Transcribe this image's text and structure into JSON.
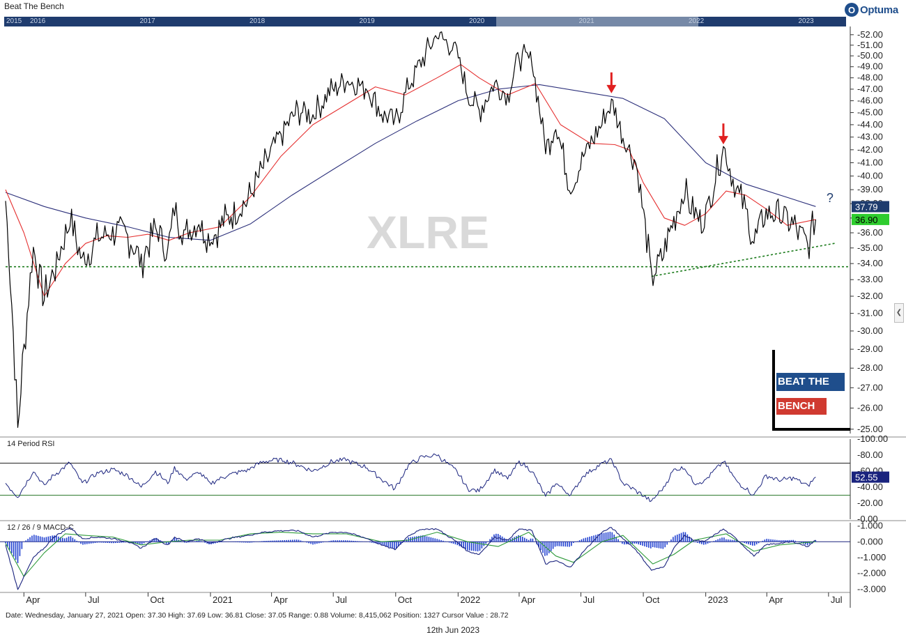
{
  "app_title": "Beat  The Bench",
  "brand": {
    "name": "Optuma",
    "mark": "O"
  },
  "navigator_years": [
    "2015",
    "2016",
    "2017",
    "2018",
    "2019",
    "2020",
    "2021",
    "2022",
    "2023"
  ],
  "watermark": "XLRE",
  "question_mark": "?",
  "status_line": "Date: Wednesday, January 27, 2021 Open: 37.30 High: 37.69 Low: 36.81 Close: 37.05 Range: 0.88 Volume: 8,415,062 Position: 1327 Cursor Value : 28.72",
  "footer_date": "12th Jun 2023",
  "side_toggle_icon": "chevron-left-icon",
  "btb_logo": {
    "line1": "BEAT THE",
    "line2": "BENCH"
  },
  "colors": {
    "price": "#000000",
    "sma50": "#e53030",
    "sma200": "#2b2f7a",
    "support": "#1a7a1a",
    "rsi": "#1a237e",
    "macd_line": "#1a237e",
    "macd_signal": "#2e9a3a",
    "macd_hist": "#1f3fd0",
    "badge_sma200": "#1f3c6e",
    "badge_price": "#2ecc2e",
    "arrow": "#e02020"
  },
  "chart_data": [
    {
      "type": "line",
      "title": "",
      "yticks": [
        "52.00",
        "51.00",
        "50.00",
        "49.00",
        "48.00",
        "47.00",
        "46.00",
        "45.00",
        "44.00",
        "43.00",
        "42.00",
        "41.00",
        "40.00",
        "39.00",
        "38.00",
        "37.00",
        "36.00",
        "35.00",
        "34.00",
        "33.00",
        "32.00",
        "31.00",
        "30.00",
        "29.00",
        "28.00",
        "27.00",
        "26.00",
        "25.00"
      ],
      "ylim": [
        24.8,
        52.8
      ],
      "y_scale": "log",
      "xticks": [
        "Apr",
        "Jul",
        "Oct",
        "2021",
        "Apr",
        "Jul",
        "Oct",
        "2022",
        "Apr",
        "Jul",
        "Oct",
        "2023",
        "Apr",
        "Jul"
      ],
      "xlim": [
        "2020-03-05",
        "2023-08-02"
      ],
      "price_badge": "36.90",
      "sma200_badge": "37.79",
      "support_level": 33.8,
      "trendline": {
        "from": [
          "2022-10-13",
          33.2
        ],
        "to": [
          "2023-07-10",
          35.3
        ]
      },
      "arrows": [
        {
          "date": "2022-08-15",
          "value": 46.4
        },
        {
          "date": "2023-01-27",
          "value": 42.2
        }
      ],
      "series": [
        {
          "name": "XLRE",
          "x": [
            "2020-03-05",
            "2020-03-23",
            "2020-04-15",
            "2020-05-01",
            "2020-05-15",
            "2020-06-08",
            "2020-06-26",
            "2020-07-20",
            "2020-08-10",
            "2020-09-01",
            "2020-09-21",
            "2020-10-12",
            "2020-10-30",
            "2020-11-09",
            "2020-11-25",
            "2020-12-15",
            "2020-12-31",
            "2021-01-27",
            "2021-02-25",
            "2021-03-20",
            "2021-04-15",
            "2021-05-10",
            "2021-06-01",
            "2021-06-30",
            "2021-07-20",
            "2021-08-20",
            "2021-09-10",
            "2021-09-30",
            "2021-10-20",
            "2021-11-10",
            "2021-12-01",
            "2021-12-30",
            "2022-01-15",
            "2022-02-01",
            "2022-02-24",
            "2022-03-15",
            "2022-04-01",
            "2022-04-20",
            "2022-05-10",
            "2022-05-25",
            "2022-06-16",
            "2022-07-05",
            "2022-08-01",
            "2022-08-15",
            "2022-09-01",
            "2022-09-20",
            "2022-10-13",
            "2022-10-31",
            "2022-11-15",
            "2022-12-01",
            "2022-12-15",
            "2022-12-30",
            "2023-01-27",
            "2023-02-15",
            "2023-03-01",
            "2023-03-13",
            "2023-03-31",
            "2023-04-20",
            "2023-05-10",
            "2023-05-31",
            "2023-06-12"
          ],
          "values": [
            38.2,
            25.0,
            35.0,
            31.8,
            33.5,
            36.8,
            34.2,
            35.6,
            36.2,
            35.8,
            34.2,
            36.3,
            34.8,
            37.4,
            35.9,
            36.8,
            35.5,
            37.1,
            38.2,
            40.6,
            43.3,
            45.2,
            44.8,
            47.0,
            47.8,
            47.1,
            45.0,
            44.2,
            47.2,
            49.8,
            52.0,
            50.5,
            46.5,
            45.2,
            47.5,
            46.5,
            50.0,
            49.5,
            42.0,
            44.0,
            39.0,
            41.5,
            44.0,
            45.9,
            43.0,
            41.0,
            33.2,
            34.5,
            37.0,
            38.8,
            37.2,
            36.8,
            42.2,
            39.0,
            37.5,
            35.3,
            37.5,
            37.2,
            36.5,
            35.2,
            36.9
          ]
        },
        {
          "name": "",
          "x": [
            "2020-03-05",
            "2020-04-01",
            "2020-05-01",
            "2020-06-01",
            "2020-07-01",
            "2020-08-01",
            "2020-09-01",
            "2020-10-01",
            "2020-11-01",
            "2020-12-01",
            "2021-01-15",
            "2021-03-01",
            "2021-04-15",
            "2021-06-01",
            "2021-07-15",
            "2021-09-01",
            "2021-10-15",
            "2021-12-01",
            "2022-01-05",
            "2022-02-01",
            "2022-03-15",
            "2022-04-25",
            "2022-06-01",
            "2022-07-15",
            "2022-08-20",
            "2022-09-10",
            "2022-10-01",
            "2022-11-01",
            "2022-12-01",
            "2023-01-01",
            "2023-01-31",
            "2023-03-01",
            "2023-04-01",
            "2023-05-01",
            "2023-06-12"
          ],
          "values": [
            39.0,
            36.0,
            32.0,
            34.0,
            35.3,
            35.8,
            35.7,
            35.9,
            35.5,
            36.0,
            36.4,
            38.5,
            41.5,
            44.0,
            45.5,
            47.2,
            46.5,
            48.0,
            49.2,
            48.0,
            46.5,
            47.5,
            44.0,
            42.5,
            42.4,
            42.0,
            39.5,
            37.0,
            36.5,
            37.3,
            38.9,
            38.6,
            37.6,
            36.5,
            36.9
          ]
        },
        {
          "name": "",
          "x": [
            "2020-03-05",
            "2020-05-01",
            "2020-07-01",
            "2020-09-01",
            "2020-11-01",
            "2021-01-01",
            "2021-03-01",
            "2021-05-01",
            "2021-07-01",
            "2021-09-01",
            "2021-11-01",
            "2022-01-01",
            "2022-03-01",
            "2022-05-01",
            "2022-07-01",
            "2022-09-01",
            "2022-11-01",
            "2023-01-01",
            "2023-03-01",
            "2023-06-12"
          ],
          "values": [
            38.8,
            37.8,
            37.0,
            36.4,
            35.7,
            35.5,
            36.6,
            38.6,
            40.5,
            42.5,
            44.3,
            46.0,
            47.0,
            47.4,
            46.8,
            46.2,
            44.5,
            41.0,
            39.4,
            37.8
          ]
        }
      ]
    },
    {
      "type": "line",
      "title": "14 Period RSI",
      "yticks": [
        "100.00",
        "80.00",
        "60.00",
        "40.00",
        "20.00",
        "0.00"
      ],
      "ylim": [
        0,
        100
      ],
      "levels": [
        70,
        30
      ],
      "badge": "52.55",
      "series": [
        {
          "name": "RSI",
          "x": [
            "2020-03-05",
            "2020-03-23",
            "2020-04-15",
            "2020-05-01",
            "2020-05-15",
            "2020-06-08",
            "2020-06-26",
            "2020-07-20",
            "2020-08-10",
            "2020-09-01",
            "2020-09-21",
            "2020-10-12",
            "2020-10-30",
            "2020-11-09",
            "2020-11-25",
            "2020-12-15",
            "2020-12-31",
            "2021-01-27",
            "2021-02-25",
            "2021-03-20",
            "2021-04-15",
            "2021-05-10",
            "2021-06-01",
            "2021-06-30",
            "2021-07-20",
            "2021-08-20",
            "2021-09-10",
            "2021-09-30",
            "2021-10-20",
            "2021-11-10",
            "2021-12-01",
            "2021-12-30",
            "2022-01-15",
            "2022-02-01",
            "2022-02-24",
            "2022-03-15",
            "2022-04-01",
            "2022-04-20",
            "2022-05-10",
            "2022-05-25",
            "2022-06-16",
            "2022-07-05",
            "2022-08-01",
            "2022-08-15",
            "2022-09-01",
            "2022-09-20",
            "2022-10-13",
            "2022-10-31",
            "2022-11-15",
            "2022-12-01",
            "2022-12-15",
            "2022-12-30",
            "2023-01-27",
            "2023-02-15",
            "2023-03-01",
            "2023-03-13",
            "2023-03-31",
            "2023-04-20",
            "2023-05-10",
            "2023-05-31",
            "2023-06-12"
          ],
          "values": [
            45,
            28,
            60,
            42,
            55,
            70,
            45,
            58,
            62,
            55,
            40,
            60,
            45,
            65,
            50,
            58,
            45,
            55,
            62,
            72,
            75,
            68,
            60,
            72,
            74,
            64,
            50,
            38,
            68,
            78,
            80,
            60,
            38,
            35,
            62,
            50,
            72,
            60,
            28,
            45,
            30,
            55,
            70,
            74,
            45,
            36,
            22,
            40,
            62,
            64,
            45,
            48,
            72,
            48,
            38,
            30,
            55,
            48,
            52,
            42,
            52.55
          ]
        }
      ]
    },
    {
      "type": "line",
      "title": "12 / 26 / 9 MACD-C",
      "yticks": [
        "1.000",
        "0.000",
        "-1.000",
        "-2.000",
        "-3.000"
      ],
      "ylim": [
        -3.2,
        1.2
      ],
      "series": [
        {
          "name": "",
          "x": [
            "2020-03-05",
            "2020-03-23",
            "2020-04-15",
            "2020-05-01",
            "2020-05-15",
            "2020-06-08",
            "2020-06-26",
            "2020-07-20",
            "2020-08-10",
            "2020-09-01",
            "2020-09-21",
            "2020-10-12",
            "2020-10-30",
            "2020-11-09",
            "2020-11-25",
            "2020-12-15",
            "2020-12-31",
            "2021-01-27",
            "2021-02-25",
            "2021-03-20",
            "2021-04-15",
            "2021-05-10",
            "2021-06-01",
            "2021-06-30",
            "2021-07-20",
            "2021-08-20",
            "2021-09-10",
            "2021-09-30",
            "2021-10-20",
            "2021-11-10",
            "2021-12-01",
            "2021-12-30",
            "2022-01-15",
            "2022-02-01",
            "2022-02-24",
            "2022-03-15",
            "2022-04-01",
            "2022-04-20",
            "2022-05-10",
            "2022-05-25",
            "2022-06-16",
            "2022-07-05",
            "2022-08-01",
            "2022-08-15",
            "2022-09-01",
            "2022-09-20",
            "2022-10-13",
            "2022-10-31",
            "2022-11-15",
            "2022-12-01",
            "2022-12-15",
            "2022-12-30",
            "2023-01-27",
            "2023-02-15",
            "2023-03-01",
            "2023-03-13",
            "2023-03-31",
            "2023-04-20",
            "2023-05-10",
            "2023-05-31",
            "2023-06-12"
          ],
          "values": [
            -0.2,
            -3.0,
            -1.0,
            -0.4,
            0.3,
            0.9,
            0.2,
            0.3,
            0.2,
            0.0,
            -0.4,
            0.2,
            -0.2,
            0.3,
            0.0,
            0.2,
            -0.1,
            0.2,
            0.4,
            0.6,
            0.7,
            0.7,
            0.3,
            0.6,
            0.6,
            0.2,
            -0.2,
            -0.5,
            0.4,
            0.8,
            0.8,
            0.0,
            -0.6,
            -0.8,
            0.3,
            0.1,
            0.8,
            0.7,
            -1.4,
            -1.2,
            -1.6,
            -0.6,
            0.6,
            0.9,
            0.2,
            -0.5,
            -1.8,
            -1.6,
            -0.4,
            0.4,
            0.1,
            0.0,
            0.8,
            0.2,
            -0.4,
            -0.9,
            -0.2,
            -0.1,
            0.0,
            -0.3,
            0.1
          ]
        },
        {
          "name": "",
          "x": [
            "2020-03-05",
            "2020-04-01",
            "2020-05-01",
            "2020-06-01",
            "2020-07-01",
            "2020-08-10",
            "2020-09-21",
            "2020-10-30",
            "2020-12-01",
            "2021-01-15",
            "2021-03-01",
            "2021-04-15",
            "2021-06-01",
            "2021-07-20",
            "2021-09-10",
            "2021-10-20",
            "2021-12-01",
            "2022-01-15",
            "2022-03-01",
            "2022-04-15",
            "2022-05-25",
            "2022-06-20",
            "2022-08-01",
            "2022-09-01",
            "2022-10-15",
            "2022-11-15",
            "2022-12-15",
            "2023-01-31",
            "2023-03-13",
            "2023-04-20",
            "2023-06-12"
          ],
          "values": [
            -0.1,
            -2.2,
            -0.7,
            0.5,
            0.4,
            0.3,
            -0.2,
            0.0,
            0.1,
            0.1,
            0.5,
            0.6,
            0.5,
            0.5,
            0.0,
            0.1,
            0.6,
            0.0,
            -0.3,
            0.6,
            -0.9,
            -1.3,
            0.0,
            0.4,
            -1.4,
            -0.8,
            0.1,
            0.5,
            -0.6,
            -0.2,
            0.0
          ]
        }
      ]
    }
  ]
}
